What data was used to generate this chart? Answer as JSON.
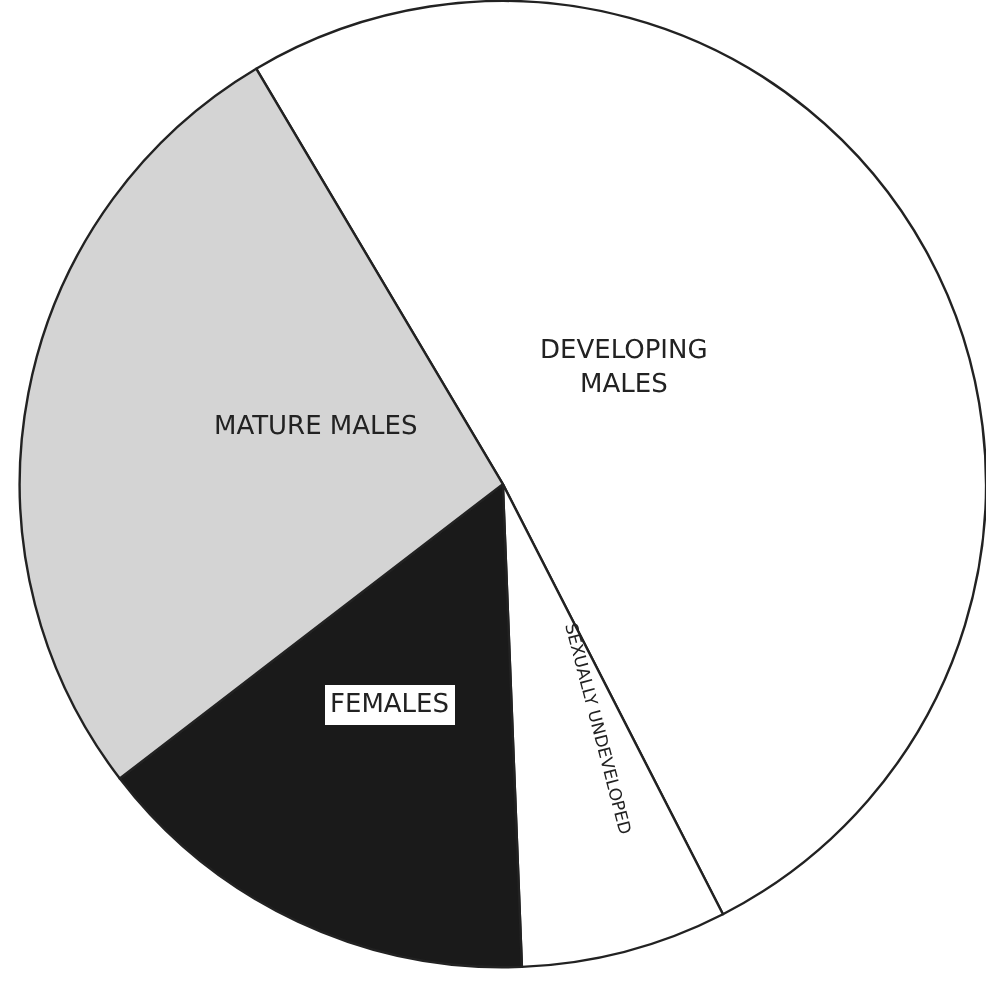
{
  "chart_data": {
    "type": "pie",
    "categories": [
      "DEVELOPING MALES",
      "SEXUALLY UNDEVELOPED",
      "FEMALES",
      "MATURE MALES"
    ],
    "values": [
      51.0,
      6.9,
      15.2,
      26.9
    ],
    "colors": [
      "#ffffff",
      "#ffffff",
      "#1a1a1a",
      "#d4d4d4"
    ]
  }
}
